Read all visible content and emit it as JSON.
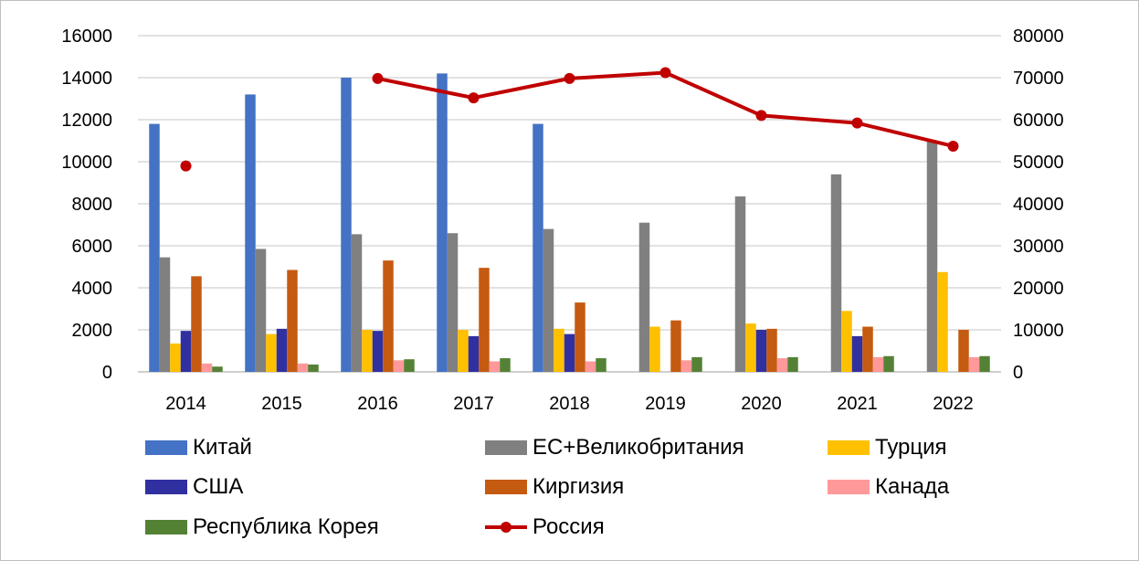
{
  "chart_data": {
    "type": "bar",
    "categories": [
      "2014",
      "2015",
      "2016",
      "2017",
      "2018",
      "2019",
      "2020",
      "2021",
      "2022"
    ],
    "ylim": [
      0,
      16000
    ],
    "y2lim": [
      0,
      80000
    ],
    "yticks": [
      "0",
      "2000",
      "4000",
      "6000",
      "8000",
      "10000",
      "12000",
      "14000",
      "16000"
    ],
    "y2ticks": [
      "0",
      "10000",
      "20000",
      "30000",
      "40000",
      "50000",
      "60000",
      "70000",
      "80000"
    ],
    "grid": true,
    "legend_position": "bottom",
    "series": [
      {
        "name": "Китай",
        "color": "#4472c4",
        "values": [
          11800,
          13200,
          14000,
          14200,
          11800,
          0,
          0,
          0,
          0
        ]
      },
      {
        "name": "ЕС+Великобритания",
        "color": "#808080",
        "values": [
          5450,
          5850,
          6550,
          6600,
          6800,
          7100,
          8350,
          9400,
          11000
        ]
      },
      {
        "name": "Турция",
        "color": "#ffc000",
        "values": [
          1350,
          1800,
          2000,
          2000,
          2050,
          2150,
          2300,
          2900,
          4750
        ]
      },
      {
        "name": "США",
        "color": "#3030a0",
        "values": [
          1950,
          2050,
          1950,
          1700,
          1800,
          0,
          2000,
          1700,
          0
        ]
      },
      {
        "name": "Киргизия",
        "color": "#c55a11",
        "values": [
          4550,
          4850,
          5300,
          4950,
          3300,
          2450,
          2050,
          2150,
          2000
        ]
      },
      {
        "name": "Канада",
        "color": "#ff9999",
        "values": [
          400,
          400,
          550,
          500,
          500,
          550,
          650,
          700,
          700
        ]
      },
      {
        "name": "Республика Корея",
        "color": "#548235",
        "values": [
          250,
          350,
          600,
          650,
          650,
          700,
          700,
          750,
          750
        ]
      }
    ],
    "line_series": {
      "name": "Россия",
      "color": "#c00000",
      "axis": "right",
      "values": [
        49000,
        null,
        69800,
        65200,
        69800,
        71200,
        61000,
        59200,
        53700
      ]
    }
  }
}
